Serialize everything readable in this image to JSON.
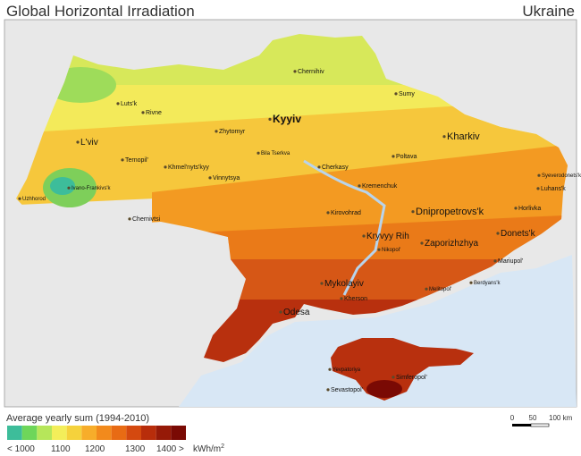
{
  "header": {
    "title": "Global Horizontal Irradiation",
    "country": "Ukraine"
  },
  "cities": [
    {
      "label": "Kyyiv"
    },
    {
      "label": "Kharkiv"
    },
    {
      "label": "Dnipropetrovs'k"
    },
    {
      "label": "Odesa"
    },
    {
      "label": "Donets'k"
    },
    {
      "label": "Zaporizhzhya"
    },
    {
      "label": "Kryvyy Rih"
    },
    {
      "label": "Mykolayiv"
    },
    {
      "label": "L'viv"
    },
    {
      "label": "Chernihiv"
    },
    {
      "label": "Sumy"
    },
    {
      "label": "Poltava"
    },
    {
      "label": "Cherkasy"
    },
    {
      "label": "Kremenchuk"
    },
    {
      "label": "Kirovohrad"
    },
    {
      "label": "Vinnytsya"
    },
    {
      "label": "Zhytomyr"
    },
    {
      "label": "Rivne"
    },
    {
      "label": "Luts'k"
    },
    {
      "label": "Ternopil'"
    },
    {
      "label": "Ivano-Frankivs'k"
    },
    {
      "label": "Uzhhorod"
    },
    {
      "label": "Chernivtsi"
    },
    {
      "label": "Khmel'nyts'kyy"
    },
    {
      "label": "Bila Tserkva"
    },
    {
      "label": "Kherson"
    },
    {
      "label": "Nikopol'"
    },
    {
      "label": "Melitopol'"
    },
    {
      "label": "Berdyans'k"
    },
    {
      "label": "Mariupol'"
    },
    {
      "label": "Horlivka"
    },
    {
      "label": "Luhans'k"
    },
    {
      "label": "Syeverodonets'k"
    },
    {
      "label": "Simferopol'"
    },
    {
      "label": "Yevpatoriya"
    },
    {
      "label": "Sevastopol'"
    }
  ],
  "legend": {
    "title": "Average yearly sum (1994-2010)",
    "colors": [
      "#3dbd9a",
      "#6ed65a",
      "#b6e65a",
      "#f3ee5a",
      "#f5d23c",
      "#f7ad2a",
      "#f28a1c",
      "#e86b14",
      "#d4490f",
      "#b82d0b",
      "#961a08",
      "#7a0a04"
    ],
    "labels": [
      "< 1000",
      "1100",
      "1200",
      "1300",
      "1400 >"
    ],
    "unit": "kWh/m",
    "unit_power": "2"
  },
  "scale": {
    "labels": [
      "0",
      "50",
      "100 km"
    ]
  }
}
